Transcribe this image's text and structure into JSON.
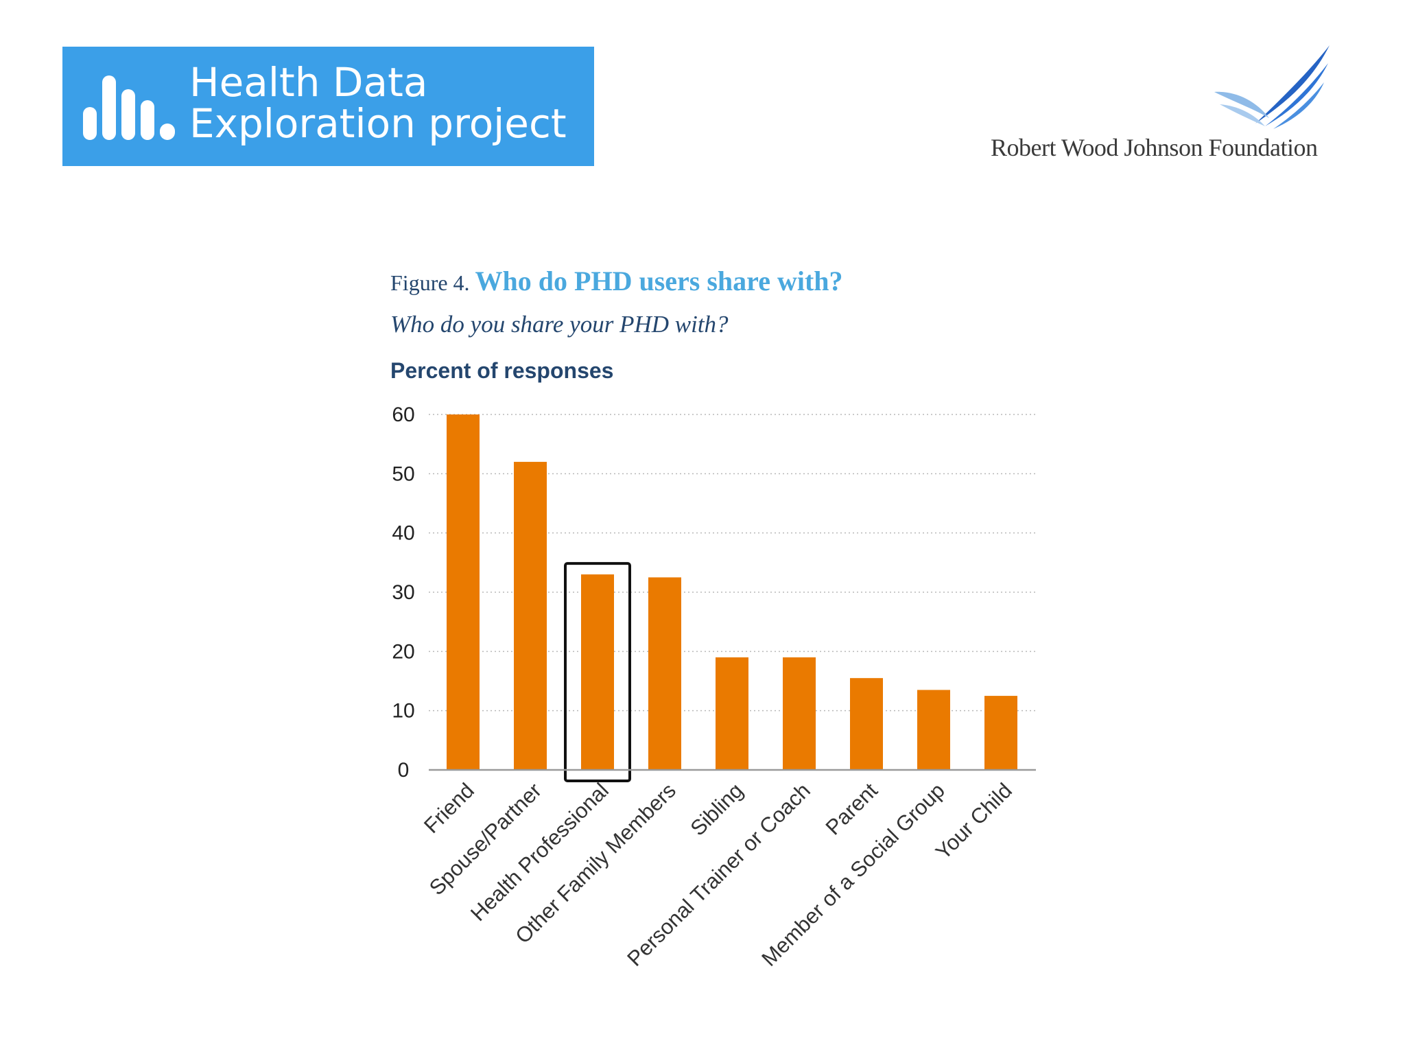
{
  "header": {
    "left_logo": {
      "name": "Health Data Exploration project",
      "line1": "Health Data",
      "line2": "Exploration project",
      "background": "#3b9fe8"
    },
    "right_logo": {
      "name": "Robert Wood Johnson Foundation",
      "wing_color": "#2563c4"
    }
  },
  "figure": {
    "prefix": "Figure 4.",
    "title": "Who do PHD users share with?",
    "subtitle": "Who do you share your PHD with?",
    "y_axis_title": "Percent of responses"
  },
  "chart_data": {
    "type": "bar",
    "title": "Who do PHD users share with?",
    "subtitle": "Who do you share your PHD with?",
    "xlabel": "",
    "ylabel": "Percent of responses",
    "categories": [
      "Friend",
      "Spouse/Partner",
      "Health Professional",
      "Other Family Members",
      "Sibling",
      "Personal Trainer or Coach",
      "Parent",
      "Member of a Social Group",
      "Your Child"
    ],
    "values": [
      60,
      52,
      33,
      32.5,
      19,
      19,
      15.5,
      13.5,
      12.5
    ],
    "ylim": [
      0,
      60
    ],
    "yticks": [
      0,
      10,
      20,
      30,
      40,
      50,
      60
    ],
    "grid": true,
    "bar_color": "#ea7a00",
    "highlighted_category": "Health Professional"
  }
}
